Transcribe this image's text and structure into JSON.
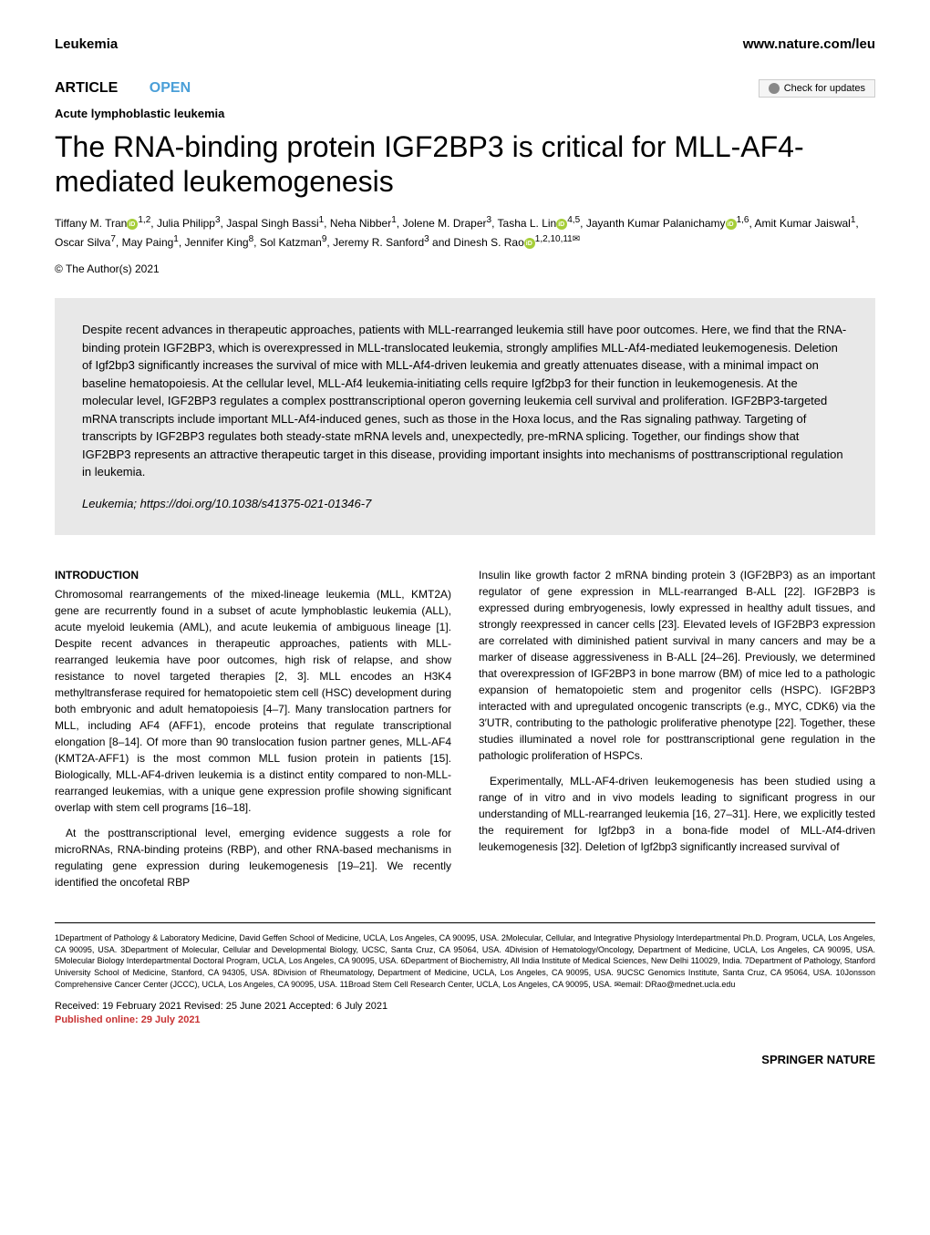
{
  "header": {
    "journal": "Leukemia",
    "url": "www.nature.com/leu"
  },
  "articleRow": {
    "type": "ARTICLE",
    "open": "OPEN",
    "checkUpdates": "Check for updates"
  },
  "category": "Acute lymphoblastic leukemia",
  "title": "The RNA-binding protein IGF2BP3 is critical for MLL-AF4-mediated leukemogenesis",
  "authors": {
    "a1_name": "Tiffany M. Tran",
    "a1_aff": "1,2",
    "a2_name": "Julia Philipp",
    "a2_aff": "3",
    "a3_name": "Jaspal Singh Bassi",
    "a3_aff": "1",
    "a4_name": "Neha Nibber",
    "a4_aff": "1",
    "a5_name": "Jolene M. Draper",
    "a5_aff": "3",
    "a6_name": "Tasha L. Lin",
    "a6_aff": "4,5",
    "a7_name": "Jayanth Kumar Palanichamy",
    "a7_aff": "1,6",
    "a8_name": "Amit Kumar Jaiswal",
    "a8_aff": "1",
    "a9_name": "Oscar Silva",
    "a9_aff": "7",
    "a10_name": "May Paing",
    "a10_aff": "1",
    "a11_name": "Jennifer King",
    "a11_aff": "8",
    "a12_name": "Sol Katzman",
    "a12_aff": "9",
    "a13_name": "Jeremy R. Sanford",
    "a13_aff": "3",
    "a14_name": "Dinesh S. Rao",
    "a14_aff": "1,2,10,11"
  },
  "copyright": "© The Author(s) 2021",
  "abstract": {
    "text": "Despite recent advances in therapeutic approaches, patients with MLL-rearranged leukemia still have poor outcomes. Here, we find that the RNA-binding protein IGF2BP3, which is overexpressed in MLL-translocated leukemia, strongly amplifies MLL-Af4-mediated leukemogenesis. Deletion of Igf2bp3 significantly increases the survival of mice with MLL-Af4-driven leukemia and greatly attenuates disease, with a minimal impact on baseline hematopoiesis. At the cellular level, MLL-Af4 leukemia-initiating cells require Igf2bp3 for their function in leukemogenesis. At the molecular level, IGF2BP3 regulates a complex posttranscriptional operon governing leukemia cell survival and proliferation. IGF2BP3-targeted mRNA transcripts include important MLL-Af4-induced genes, such as those in the Hoxa locus, and the Ras signaling pathway. Targeting of transcripts by IGF2BP3 regulates both steady-state mRNA levels and, unexpectedly, pre-mRNA splicing. Together, our findings show that IGF2BP3 represents an attractive therapeutic target in this disease, providing important insights into mechanisms of posttranscriptional regulation in leukemia.",
    "journalItalic": "Leukemia",
    "doi": "https://doi.org/10.1038/s41375-021-01346-7"
  },
  "intro": {
    "heading": "INTRODUCTION",
    "col1p1": "Chromosomal rearrangements of the mixed-lineage leukemia (MLL, KMT2A) gene are recurrently found in a subset of acute lymphoblastic leukemia (ALL), acute myeloid leukemia (AML), and acute leukemia of ambiguous lineage [1]. Despite recent advances in therapeutic approaches, patients with MLL-rearranged leukemia have poor outcomes, high risk of relapse, and show resistance to novel targeted therapies [2, 3]. MLL encodes an H3K4 methyltransferase required for hematopoietic stem cell (HSC) development during both embryonic and adult hematopoiesis [4–7]. Many translocation partners for MLL, including AF4 (AFF1), encode proteins that regulate transcriptional elongation [8–14]. Of more than 90 translocation fusion partner genes, MLL-AF4 (KMT2A-AFF1) is the most common MLL fusion protein in patients [15]. Biologically, MLL-AF4-driven leukemia is a distinct entity compared to non-MLL-rearranged leukemias, with a unique gene expression profile showing significant overlap with stem cell programs [16–18].",
    "col1p2": "At the posttranscriptional level, emerging evidence suggests a role for microRNAs, RNA-binding proteins (RBP), and other RNA-based mechanisms in regulating gene expression during leukemogenesis [19–21]. We recently identified the oncofetal RBP",
    "col2p1": "Insulin like growth factor 2 mRNA binding protein 3 (IGF2BP3) as an important regulator of gene expression in MLL-rearranged B-ALL [22]. IGF2BP3 is expressed during embryogenesis, lowly expressed in healthy adult tissues, and strongly reexpressed in cancer cells [23]. Elevated levels of IGF2BP3 expression are correlated with diminished patient survival in many cancers and may be a marker of disease aggressiveness in B-ALL [24–26]. Previously, we determined that overexpression of IGF2BP3 in bone marrow (BM) of mice led to a pathologic expansion of hematopoietic stem and progenitor cells (HSPC). IGF2BP3 interacted with and upregulated oncogenic transcripts (e.g., MYC, CDK6) via the 3′UTR, contributing to the pathologic proliferative phenotype [22]. Together, these studies illuminated a novel role for posttranscriptional gene regulation in the pathologic proliferation of HSPCs.",
    "col2p2": "Experimentally, MLL-AF4-driven leukemogenesis has been studied using a range of in vitro and in vivo models leading to significant progress in our understanding of MLL-rearranged leukemia [16, 27–31]. Here, we explicitly tested the requirement for Igf2bp3 in a bona-fide model of MLL-Af4-driven leukemogenesis [32]. Deletion of Igf2bp3 significantly increased survival of"
  },
  "affiliations": "1Department of Pathology & Laboratory Medicine, David Geffen School of Medicine, UCLA, Los Angeles, CA 90095, USA. 2Molecular, Cellular, and Integrative Physiology Interdepartmental Ph.D. Program, UCLA, Los Angeles, CA 90095, USA. 3Department of Molecular, Cellular and Developmental Biology, UCSC, Santa Cruz, CA 95064, USA. 4Division of Hematology/Oncology, Department of Medicine, UCLA, Los Angeles, CA 90095, USA. 5Molecular Biology Interdepartmental Doctoral Program, UCLA, Los Angeles, CA 90095, USA. 6Department of Biochemistry, All India Institute of Medical Sciences, New Delhi 110029, India. 7Department of Pathology, Stanford University School of Medicine, Stanford, CA 94305, USA. 8Division of Rheumatology, Department of Medicine, UCLA, Los Angeles, CA 90095, USA. 9UCSC Genomics Institute, Santa Cruz, CA 95064, USA. 10Jonsson Comprehensive Cancer Center (JCCC), UCLA, Los Angeles, CA 90095, USA. 11Broad Stem Cell Research Center, UCLA, Los Angeles, CA 90095, USA. ✉email: DRao@mednet.ucla.edu",
  "received": "Received: 19 February 2021 Revised: 25 June 2021 Accepted: 6 July 2021",
  "published": "Published online: 29 July 2021",
  "publisher": "SPRINGER NATURE"
}
